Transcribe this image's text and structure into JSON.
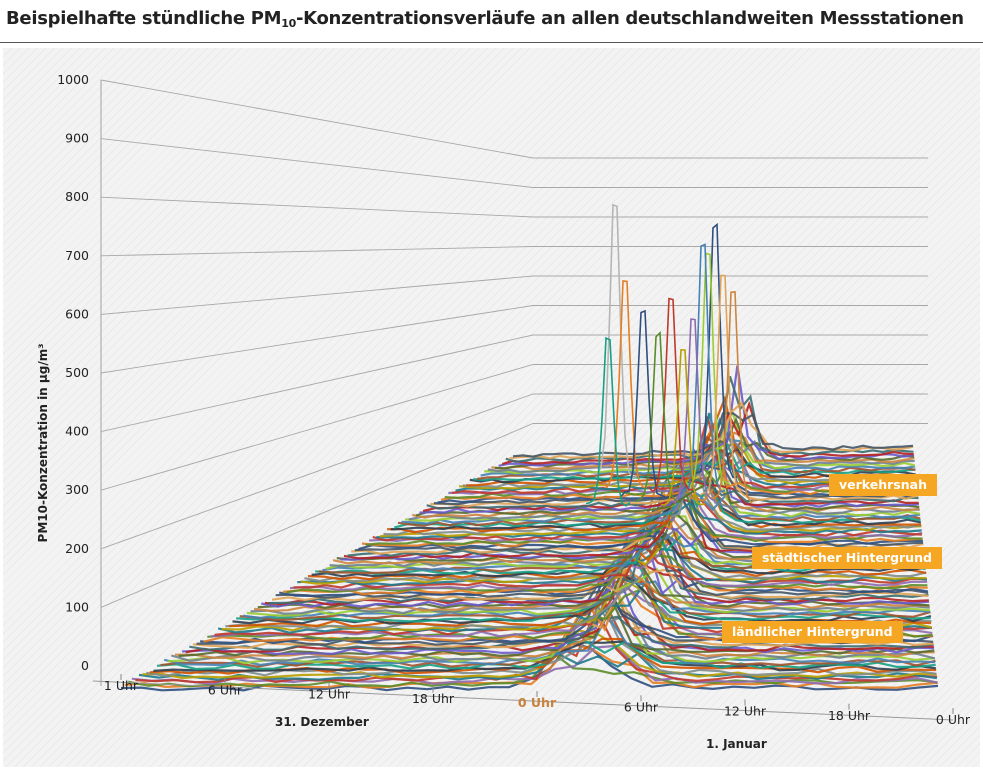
{
  "title": {
    "main": "Beispielhafte stündliche PM",
    "sub": "10",
    "rest": "-Konzentrationsverläufe an allen deutschlandweiten Messstationen"
  },
  "chart_data": {
    "type": "line",
    "view": "3d",
    "ylabel": "PM10-Konzentration in µg/m³",
    "ylim": [
      0,
      1000
    ],
    "yticks": [
      "0",
      "100",
      "200",
      "300",
      "400",
      "500",
      "600",
      "700",
      "800",
      "900",
      "1000"
    ],
    "xticks": [
      "1 Uhr",
      "6 Uhr",
      "12 Uhr",
      "18 Uhr",
      "0 Uhr",
      "6 Uhr",
      "12 Uhr",
      "18 Uhr",
      "0 Uhr"
    ],
    "xtick_highlight_index": 4,
    "highlight_color": "#c8823c",
    "date_labels": [
      "31. Dezember",
      "1. Januar"
    ],
    "grid": true,
    "depth_groups": [
      "ländlicher Hintergrund",
      "städtischer Hintergrund",
      "verkehrsnah"
    ],
    "group_color": "#f5a623",
    "peaks": [
      {
        "hour": 25,
        "value": 835
      },
      {
        "hour": 32,
        "value": 765
      },
      {
        "hour": 27,
        "value": 605
      },
      {
        "hour": 33,
        "value": 690
      }
    ],
    "baseline_range": [
      20,
      80
    ]
  }
}
